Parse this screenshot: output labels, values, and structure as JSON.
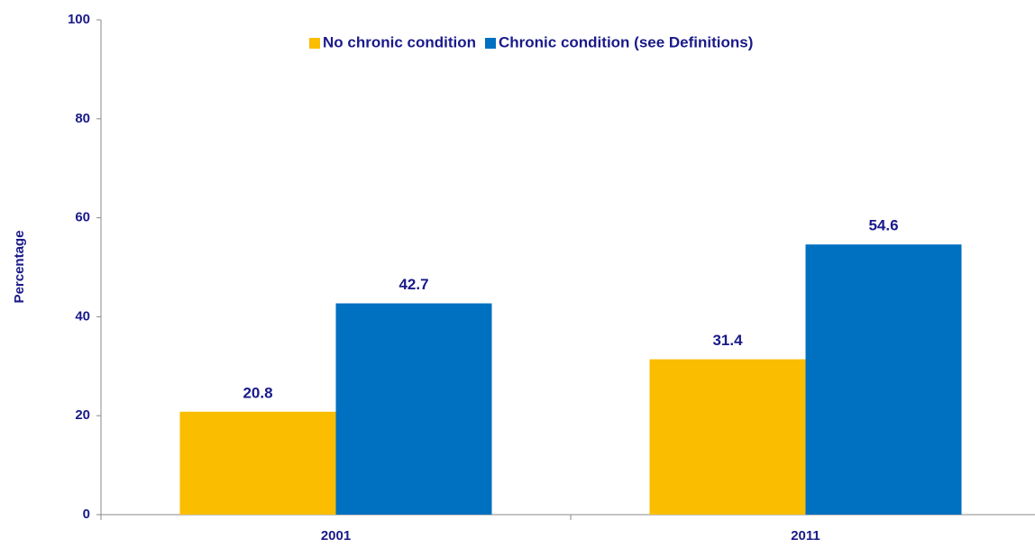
{
  "chart_data": {
    "type": "bar",
    "y_label": "Percentage",
    "categories": [
      "2001",
      "2011"
    ],
    "series": [
      {
        "name": "No chronic condition",
        "color": "#fbbd00",
        "values": [
          20.8,
          31.4
        ]
      },
      {
        "name": "Chronic condition (see Definitions)",
        "color": "#0070c0",
        "values": [
          42.7,
          54.6
        ]
      }
    ],
    "ylim": [
      0,
      100
    ],
    "yticks": [
      0,
      20,
      40,
      60,
      80,
      100
    ],
    "grid": false,
    "legend": "top"
  }
}
